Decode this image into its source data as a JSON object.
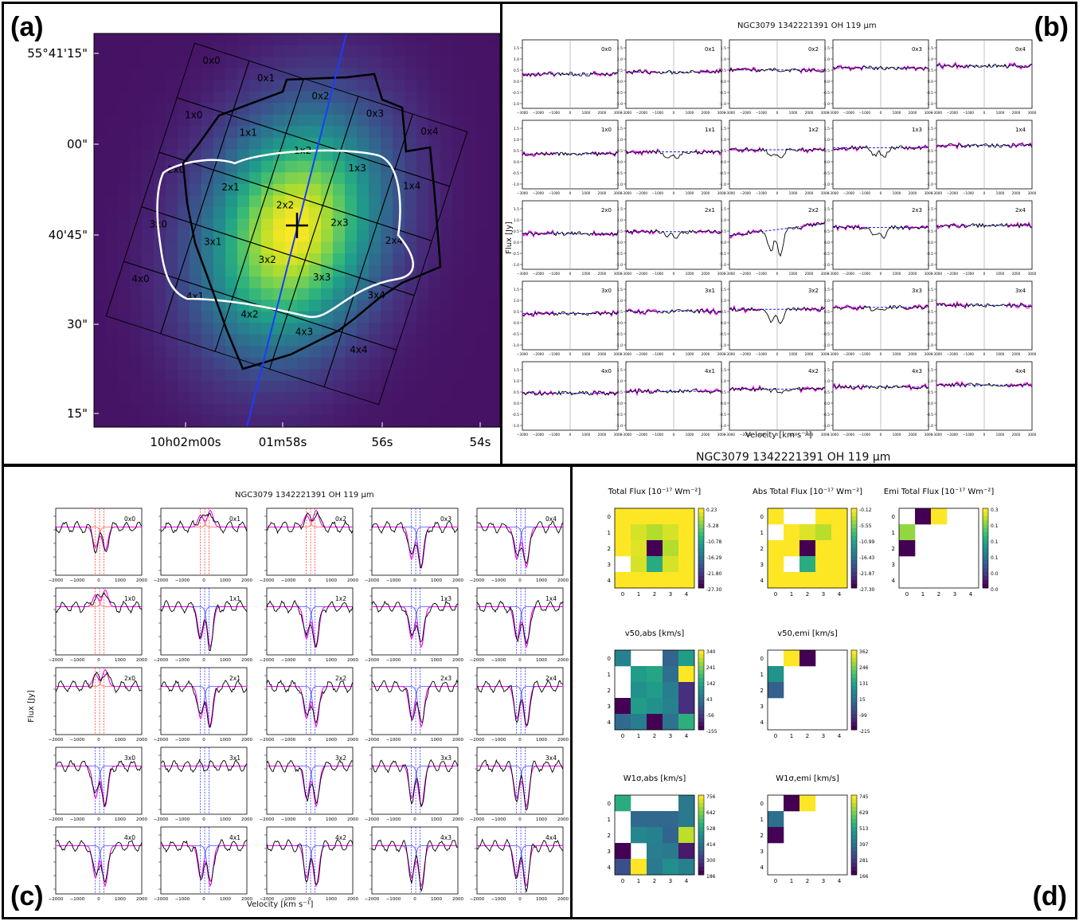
{
  "panel_labels": {
    "a": "(a)",
    "b": "(b)",
    "c": "(c)",
    "d": "(d)"
  },
  "colors": {
    "map_low": "#440154",
    "map_mid": "#21918c",
    "map_high": "#fde725",
    "data_line": "#000000",
    "fit_line": "#ff00ff",
    "model_line": "#1a1aff",
    "emission_line": "#ff2020"
  },
  "panel_a": {
    "dec_ticks": [
      "55°41'15\"",
      "00\"",
      "40'45\"",
      "30\"",
      "15\""
    ],
    "ra_ticks": [
      "10h02m00s",
      "01m58s",
      "56s",
      "54s"
    ],
    "spaxels": [
      "0x0",
      "0x1",
      "0x2",
      "0x3",
      "0x4",
      "1x0",
      "1x1",
      "1x2",
      "1x3",
      "1x4",
      "2x0",
      "2x1",
      "2x2",
      "2x3",
      "2x4",
      "3x0",
      "3x1",
      "3x2",
      "3x3",
      "3x4",
      "4x0",
      "4x1",
      "4x2",
      "4x3",
      "4x4"
    ]
  },
  "panel_b": {
    "title": "NGC3079 1342221391 OH 119 μm",
    "xlabel": "Velocity [km s⁻¹]",
    "ylabel": "Flux [Jy]",
    "x_ticks": [
      "−3000",
      "−2000",
      "−1000",
      "0",
      "1000",
      "2000",
      "3000"
    ]
  },
  "panel_c": {
    "title": "NGC3079 1342221391 OH 119 μm",
    "xlabel": "Velocity [km s⁻¹]",
    "ylabel": "Flux [Jy]",
    "x_ticks": [
      "−2000",
      "−1000",
      "0",
      "1000",
      "2000"
    ]
  },
  "panel_d": {
    "title": "NGC3079 1342221391 OH 119 μm",
    "maps": [
      {
        "key": "total_flux",
        "title": "Total Flux [10⁻¹⁷ Wm⁻²]",
        "cbar": [
          "0.23",
          "-5.28",
          "-10.78",
          "-16.29",
          "-21.80",
          "-27.30"
        ]
      },
      {
        "key": "abs_flux",
        "title": "Abs Total Flux [10⁻¹⁷ Wm⁻²]",
        "cbar": [
          "-0.12",
          "-5.55",
          "-10.99",
          "-16.43",
          "-21.87",
          "-27.30"
        ]
      },
      {
        "key": "emi_flux",
        "title": "Emi Total Flux [10⁻¹⁷ Wm⁻²]",
        "cbar": [
          "0.3",
          "0.1",
          "0.1",
          "0.1",
          "0.0",
          "0.0"
        ]
      },
      {
        "key": "v50_abs",
        "title": "v50,abs [km/s]",
        "cbar": [
          "340",
          "241",
          "142",
          "43",
          "-56",
          "-155"
        ]
      },
      {
        "key": "v50_emi",
        "title": "v50,emi [km/s]",
        "cbar": [
          "362",
          "246",
          "131",
          "15",
          "-99",
          "-215"
        ]
      },
      {
        "key": "w_abs",
        "title": "W1σ,abs [km/s]",
        "cbar": [
          "756",
          "642",
          "528",
          "414",
          "300",
          "186"
        ]
      },
      {
        "key": "w_emi",
        "title": "W1σ,emi [km/s]",
        "cbar": [
          "745",
          "629",
          "513",
          "397",
          "281",
          "166"
        ]
      }
    ],
    "axis_ticks": [
      "0",
      "1",
      "2",
      "3",
      "4"
    ]
  },
  "chart_data": [
    {
      "type": "heatmap",
      "title": "Total Flux [10⁻¹⁷ Wm⁻²]",
      "rows": [
        "0",
        "1",
        "2",
        "3",
        "4"
      ],
      "cols": [
        "0",
        "1",
        "2",
        "3",
        "4"
      ],
      "values": [
        [
          0.2,
          0.2,
          0.2,
          0.2,
          0.2
        ],
        [
          0.2,
          -1.5,
          -3.0,
          -1.5,
          0.2
        ],
        [
          0.2,
          -1.0,
          -27.3,
          -3.0,
          0.2
        ],
        [
          null,
          -1.5,
          -10.5,
          -1.5,
          0.2
        ],
        [
          0.2,
          0.2,
          0.2,
          0.2,
          0.2
        ]
      ]
    },
    {
      "type": "heatmap",
      "title": "Abs Total Flux [10⁻¹⁷ Wm⁻²]",
      "rows": [
        "0",
        "1",
        "2",
        "3",
        "4"
      ],
      "cols": [
        "0",
        "1",
        "2",
        "3",
        "4"
      ],
      "values": [
        [
          -0.1,
          null,
          null,
          -0.1,
          -0.1
        ],
        [
          null,
          -0.1,
          -1.5,
          -3.0,
          -0.1
        ],
        [
          -0.1,
          -0.1,
          -27.3,
          -0.1,
          -0.1
        ],
        [
          -0.1,
          null,
          -10.5,
          -0.1,
          -0.1
        ],
        [
          -0.1,
          -0.1,
          -0.1,
          -0.1,
          -0.1
        ]
      ]
    },
    {
      "type": "heatmap",
      "title": "Emi Total Flux [10⁻¹⁷ Wm⁻²]",
      "rows": [
        "0",
        "1",
        "2",
        "3",
        "4"
      ],
      "cols": [
        "0",
        "1",
        "2",
        "3",
        "4"
      ],
      "values": [
        [
          null,
          0.0,
          0.3,
          null,
          null
        ],
        [
          0.25,
          null,
          null,
          null,
          null
        ],
        [
          0.0,
          null,
          null,
          null,
          null
        ],
        [
          null,
          null,
          null,
          null,
          null
        ],
        [
          null,
          null,
          null,
          null,
          null
        ]
      ]
    },
    {
      "type": "heatmap",
      "title": "v50,abs [km/s]",
      "rows": [
        "0",
        "1",
        "2",
        "3",
        "4"
      ],
      "cols": [
        "0",
        "1",
        "2",
        "3",
        "4"
      ],
      "values": [
        [
          60,
          null,
          null,
          0,
          110
        ],
        [
          null,
          110,
          130,
          20,
          330
        ],
        [
          null,
          90,
          110,
          50,
          -90
        ],
        [
          -155,
          110,
          90,
          60,
          -90
        ],
        [
          10,
          50,
          -155,
          30,
          150
        ]
      ]
    },
    {
      "type": "heatmap",
      "title": "v50,emi [km/s]",
      "rows": [
        "0",
        "1",
        "2",
        "3",
        "4"
      ],
      "cols": [
        "0",
        "1",
        "2",
        "3",
        "4"
      ],
      "values": [
        [
          null,
          362,
          -215,
          null,
          null
        ],
        [
          80,
          null,
          null,
          null,
          null
        ],
        [
          -40,
          null,
          null,
          null,
          null
        ],
        [
          null,
          null,
          null,
          null,
          null
        ],
        [
          null,
          null,
          null,
          null,
          null
        ]
      ]
    },
    {
      "type": "heatmap",
      "title": "W1σ,abs [km/s]",
      "rows": [
        "0",
        "1",
        "2",
        "3",
        "4"
      ],
      "cols": [
        "0",
        "1",
        "2",
        "3",
        "4"
      ],
      "values": [
        [
          540,
          null,
          null,
          null,
          420
        ],
        [
          null,
          380,
          380,
          380,
          420
        ],
        [
          null,
          450,
          440,
          370,
          700
        ],
        [
          190,
          null,
          430,
          420,
          230
        ],
        [
          330,
          756,
          420,
          470,
          440
        ]
      ]
    },
    {
      "type": "heatmap",
      "title": "W1σ,emi [km/s]",
      "rows": [
        "0",
        "1",
        "2",
        "3",
        "4"
      ],
      "cols": [
        "0",
        "1",
        "2",
        "3",
        "4"
      ],
      "values": [
        [
          null,
          166,
          745,
          null,
          null
        ],
        [
          380,
          null,
          null,
          null,
          null
        ],
        [
          170,
          null,
          null,
          null,
          null
        ],
        [
          null,
          null,
          null,
          null,
          null
        ],
        [
          null,
          null,
          null,
          null,
          null
        ]
      ]
    }
  ]
}
